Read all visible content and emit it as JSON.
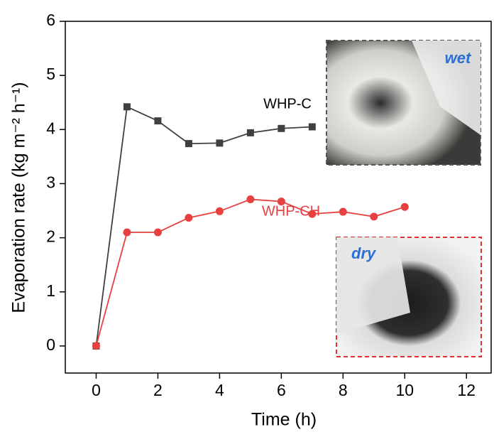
{
  "chart_data": {
    "type": "line",
    "x_label": "Time (h)",
    "y_label": "Evaporation rate (kg m⁻² h⁻¹)",
    "xlim": [
      -1,
      12.8
    ],
    "xticks": [
      0,
      2,
      4,
      6,
      8,
      10,
      12
    ],
    "ylim": [
      -0.5,
      6
    ],
    "yticks": [
      0,
      1,
      2,
      3,
      4,
      5,
      6
    ],
    "series": [
      {
        "name": "WHP-C",
        "color": "#404040",
        "marker": "square",
        "x": [
          0,
          1,
          2,
          3,
          4,
          5,
          6,
          7
        ],
        "values": [
          0,
          4.42,
          4.16,
          3.74,
          3.75,
          3.94,
          4.02,
          4.05
        ]
      },
      {
        "name": "WHP-CH",
        "color": "#e84040",
        "marker": "circle",
        "x": [
          0,
          1,
          2,
          3,
          4,
          5,
          6,
          7,
          8,
          9,
          10
        ],
        "values": [
          0,
          2.1,
          2.1,
          2.37,
          2.49,
          2.71,
          2.67,
          2.44,
          2.48,
          2.39,
          2.57
        ]
      }
    ],
    "annotations": [
      "wet",
      "dry"
    ]
  }
}
